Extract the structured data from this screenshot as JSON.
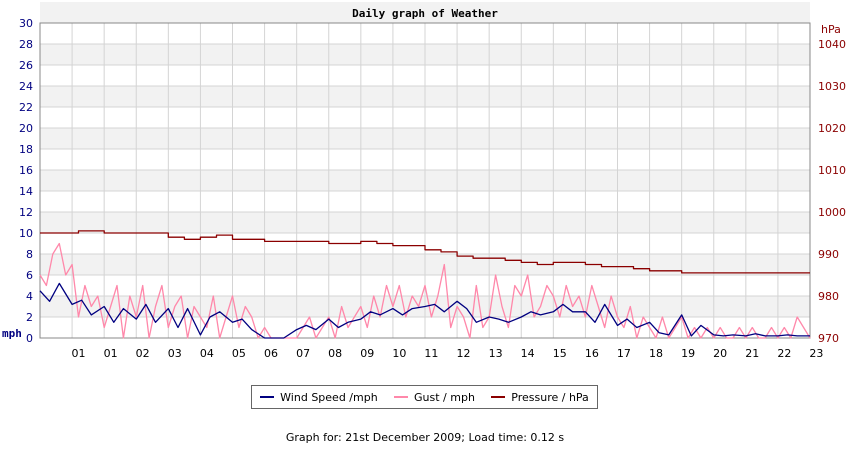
{
  "chart_data": {
    "type": "line",
    "title": "Daily graph of Weather",
    "y_left": {
      "label": "mph",
      "min": 0,
      "max": 30,
      "ticks": [
        "0",
        "2",
        "4",
        "6",
        "8",
        "10",
        "12",
        "14",
        "16",
        "18",
        "20",
        "22",
        "24",
        "26",
        "28",
        "30"
      ],
      "color": "#000080"
    },
    "y_right": {
      "label": "hPa",
      "min": 970,
      "max": 1045,
      "ticks": [
        "970",
        "980",
        "990",
        "1000",
        "1010",
        "1020",
        "1030",
        "1040"
      ],
      "color": "#8b0000"
    },
    "x_ticks": [
      "01",
      "01",
      "02",
      "03",
      "04",
      "05",
      "06",
      "07",
      "08",
      "09",
      "10",
      "11",
      "12",
      "13",
      "14",
      "15",
      "16",
      "17",
      "18",
      "19",
      "20",
      "21",
      "22",
      "23"
    ],
    "grid": true,
    "series": [
      {
        "name": "Wind Speed /mph",
        "color": "#000080",
        "x": [
          0,
          0.3,
          0.6,
          1,
          1.3,
          1.6,
          2,
          2.3,
          2.6,
          3,
          3.3,
          3.6,
          4,
          4.3,
          4.6,
          5,
          5.3,
          5.6,
          6,
          6.3,
          6.6,
          7,
          7.3,
          7.6,
          8,
          8.3,
          8.6,
          9,
          9.3,
          9.6,
          10,
          10.3,
          10.6,
          11,
          11.3,
          11.6,
          12,
          12.3,
          12.6,
          13,
          13.3,
          13.6,
          14,
          14.3,
          14.6,
          15,
          15.3,
          15.6,
          16,
          16.3,
          16.6,
          17,
          17.3,
          17.6,
          18,
          18.3,
          18.6,
          19,
          19.3,
          19.6,
          20,
          20.3,
          20.6,
          21,
          21.3,
          21.6,
          22,
          22.3,
          22.6,
          23,
          23.3,
          23.6,
          24
        ],
        "values": [
          4.5,
          3.5,
          5.2,
          3.2,
          3.6,
          2.2,
          3,
          1.5,
          2.8,
          1.8,
          3.2,
          1.5,
          2.8,
          1,
          2.8,
          0.3,
          2,
          2.5,
          1.5,
          1.8,
          0.8,
          0,
          0,
          0,
          0.8,
          1.2,
          0.8,
          1.8,
          1,
          1.5,
          1.8,
          2.5,
          2.2,
          2.8,
          2.2,
          2.8,
          3,
          3.2,
          2.5,
          3.5,
          2.8,
          1.5,
          2,
          1.8,
          1.5,
          2,
          2.5,
          2.2,
          2.5,
          3.2,
          2.5,
          2.5,
          1.5,
          3.2,
          1.2,
          1.8,
          1,
          1.5,
          0.5,
          0.3,
          2.2,
          0.2,
          1.2,
          0.3,
          0.2,
          0.3,
          0.2,
          0.4,
          0.2,
          0.2,
          0.3,
          0.2,
          0.2
        ]
      },
      {
        "name": "Gust / mph",
        "color": "#ff88aa",
        "x": [
          0,
          0.2,
          0.4,
          0.6,
          0.8,
          1,
          1.2,
          1.4,
          1.6,
          1.8,
          2,
          2.2,
          2.4,
          2.6,
          2.8,
          3,
          3.2,
          3.4,
          3.6,
          3.8,
          4,
          4.2,
          4.4,
          4.6,
          4.8,
          5,
          5.2,
          5.4,
          5.6,
          5.8,
          6,
          6.2,
          6.4,
          6.6,
          6.8,
          7,
          7.2,
          7.4,
          7.6,
          7.8,
          8,
          8.2,
          8.4,
          8.6,
          8.8,
          9,
          9.2,
          9.4,
          9.6,
          9.8,
          10,
          10.2,
          10.4,
          10.6,
          10.8,
          11,
          11.2,
          11.4,
          11.6,
          11.8,
          12,
          12.2,
          12.4,
          12.6,
          12.8,
          13,
          13.2,
          13.4,
          13.6,
          13.8,
          14,
          14.2,
          14.4,
          14.6,
          14.8,
          15,
          15.2,
          15.4,
          15.6,
          15.8,
          16,
          16.2,
          16.4,
          16.6,
          16.8,
          17,
          17.2,
          17.4,
          17.6,
          17.8,
          18,
          18.2,
          18.4,
          18.6,
          18.8,
          19,
          19.2,
          19.4,
          19.6,
          19.8,
          20,
          20.2,
          20.4,
          20.6,
          20.8,
          21,
          21.2,
          21.4,
          21.6,
          21.8,
          22,
          22.2,
          22.4,
          22.6,
          22.8,
          23,
          23.2,
          23.4,
          23.6,
          23.8,
          24
        ],
        "values": [
          6,
          5,
          8,
          9,
          6,
          7,
          2,
          5,
          3,
          4,
          1,
          3,
          5,
          0,
          4,
          2,
          5,
          0,
          3,
          5,
          1,
          3,
          4,
          0,
          3,
          2,
          1,
          4,
          0,
          2,
          4,
          1,
          3,
          2,
          0,
          1,
          0,
          0,
          0,
          0,
          0,
          1,
          2,
          0,
          1,
          2,
          0,
          3,
          1,
          2,
          3,
          1,
          4,
          2,
          5,
          3,
          5,
          2,
          4,
          3,
          5,
          2,
          4,
          7,
          1,
          3,
          2,
          0,
          5,
          1,
          2,
          6,
          3,
          1,
          5,
          4,
          6,
          2,
          3,
          5,
          4,
          2,
          5,
          3,
          4,
          2,
          5,
          3,
          1,
          4,
          2,
          1,
          3,
          0,
          2,
          1,
          0,
          2,
          0,
          1,
          2,
          0,
          1,
          0,
          1,
          0,
          1,
          0,
          0,
          1,
          0,
          1,
          0,
          0,
          1,
          0,
          1,
          0,
          2,
          1,
          0
        ]
      },
      {
        "name": "Pressure / hPa",
        "color": "#8b0000",
        "x": [
          0,
          1,
          1.2,
          1.5,
          2,
          2.5,
          3,
          3.5,
          4,
          4.5,
          5,
          5.5,
          6,
          6.5,
          7,
          7.5,
          8,
          8.5,
          9,
          9.5,
          10,
          10.5,
          11,
          11.5,
          12,
          12.5,
          13,
          13.5,
          14,
          14.5,
          15,
          15.5,
          16,
          16.5,
          17,
          17.5,
          18,
          18.5,
          19,
          19.5,
          20,
          20.5,
          21,
          21.5,
          22,
          22.5,
          23,
          23.5,
          24
        ],
        "values": [
          995,
          995,
          995.5,
          995.5,
          995,
          995,
          995,
          995,
          994,
          993.5,
          994,
          994.5,
          993.5,
          993.5,
          993,
          993,
          993,
          993,
          992.5,
          992.5,
          993,
          992.5,
          992,
          992,
          991,
          990.5,
          989.5,
          989,
          989,
          988.5,
          988,
          987.5,
          988,
          988,
          987.5,
          987,
          987,
          986.5,
          986,
          986,
          985.5,
          985.5,
          985.5,
          985.5,
          985.5,
          985.5,
          985.5,
          985.5,
          985.5
        ]
      }
    ]
  },
  "legend": {
    "wind_label": "Wind Speed /mph",
    "gust_label": "Gust / mph",
    "pressure_label": "Pressure / hPa"
  },
  "footer": {
    "text": "Graph for: 21st December 2009; Load time: 0.12 s"
  },
  "colors": {
    "band": "#f2f2f2",
    "grid": "#d4d4d4",
    "frame": "#888888"
  }
}
